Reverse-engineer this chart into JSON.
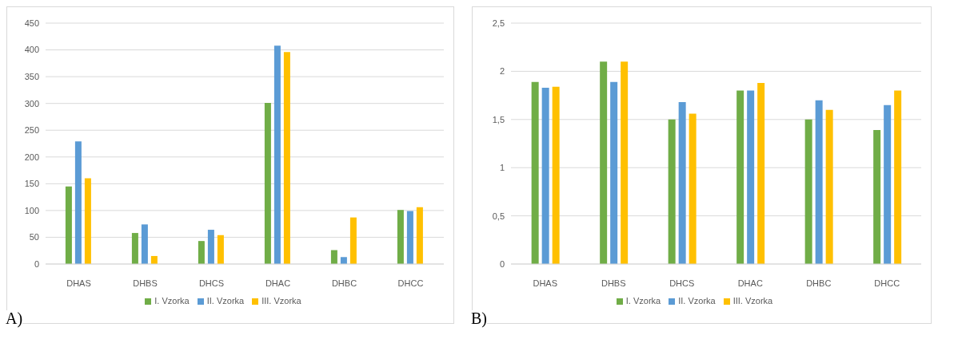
{
  "chart_data": [
    {
      "type": "bar",
      "categories": [
        "DHAS",
        "DHBS",
        "DHCS",
        "DHAC",
        "DHBC",
        "DHCC"
      ],
      "series": [
        {
          "name": "I. Vzorka",
          "color": "#70ad47",
          "values": [
            145,
            58,
            43,
            301,
            26,
            101
          ]
        },
        {
          "name": "II. Vzorka",
          "color": "#5b9bd5",
          "values": [
            229,
            74,
            64,
            408,
            13,
            99
          ]
        },
        {
          "name": "III. Vzorka",
          "color": "#ffc000",
          "values": [
            160,
            15,
            54,
            396,
            87,
            106
          ]
        }
      ],
      "ylim": [
        0,
        450
      ],
      "yticks": [
        0,
        50,
        100,
        150,
        200,
        250,
        300,
        350,
        400,
        450
      ],
      "grid": "y",
      "legend": "bottom",
      "annotations": [
        "A)"
      ]
    },
    {
      "type": "bar",
      "categories": [
        "DHAS",
        "DHBS",
        "DHCS",
        "DHAC",
        "DHBC",
        "DHCC"
      ],
      "series": [
        {
          "name": "I. Vzorka",
          "color": "#70ad47",
          "values": [
            1.89,
            2.1,
            1.5,
            1.8,
            1.5,
            1.39
          ]
        },
        {
          "name": "II. Vzorka",
          "color": "#5b9bd5",
          "values": [
            1.83,
            1.89,
            1.68,
            1.8,
            1.7,
            1.65
          ]
        },
        {
          "name": "III. Vzorka",
          "color": "#ffc000",
          "values": [
            1.84,
            2.1,
            1.56,
            1.88,
            1.6,
            1.8
          ]
        }
      ],
      "ylim": [
        0,
        2.5
      ],
      "yticks": [
        0,
        {
          "value": 0.5,
          "label": "0,5"
        },
        1,
        {
          "value": 1.5,
          "label": "1,5"
        },
        2,
        {
          "value": 2.5,
          "label": "2,5"
        }
      ],
      "grid": "y",
      "legend": "bottom",
      "annotations": [
        "B)"
      ]
    }
  ]
}
